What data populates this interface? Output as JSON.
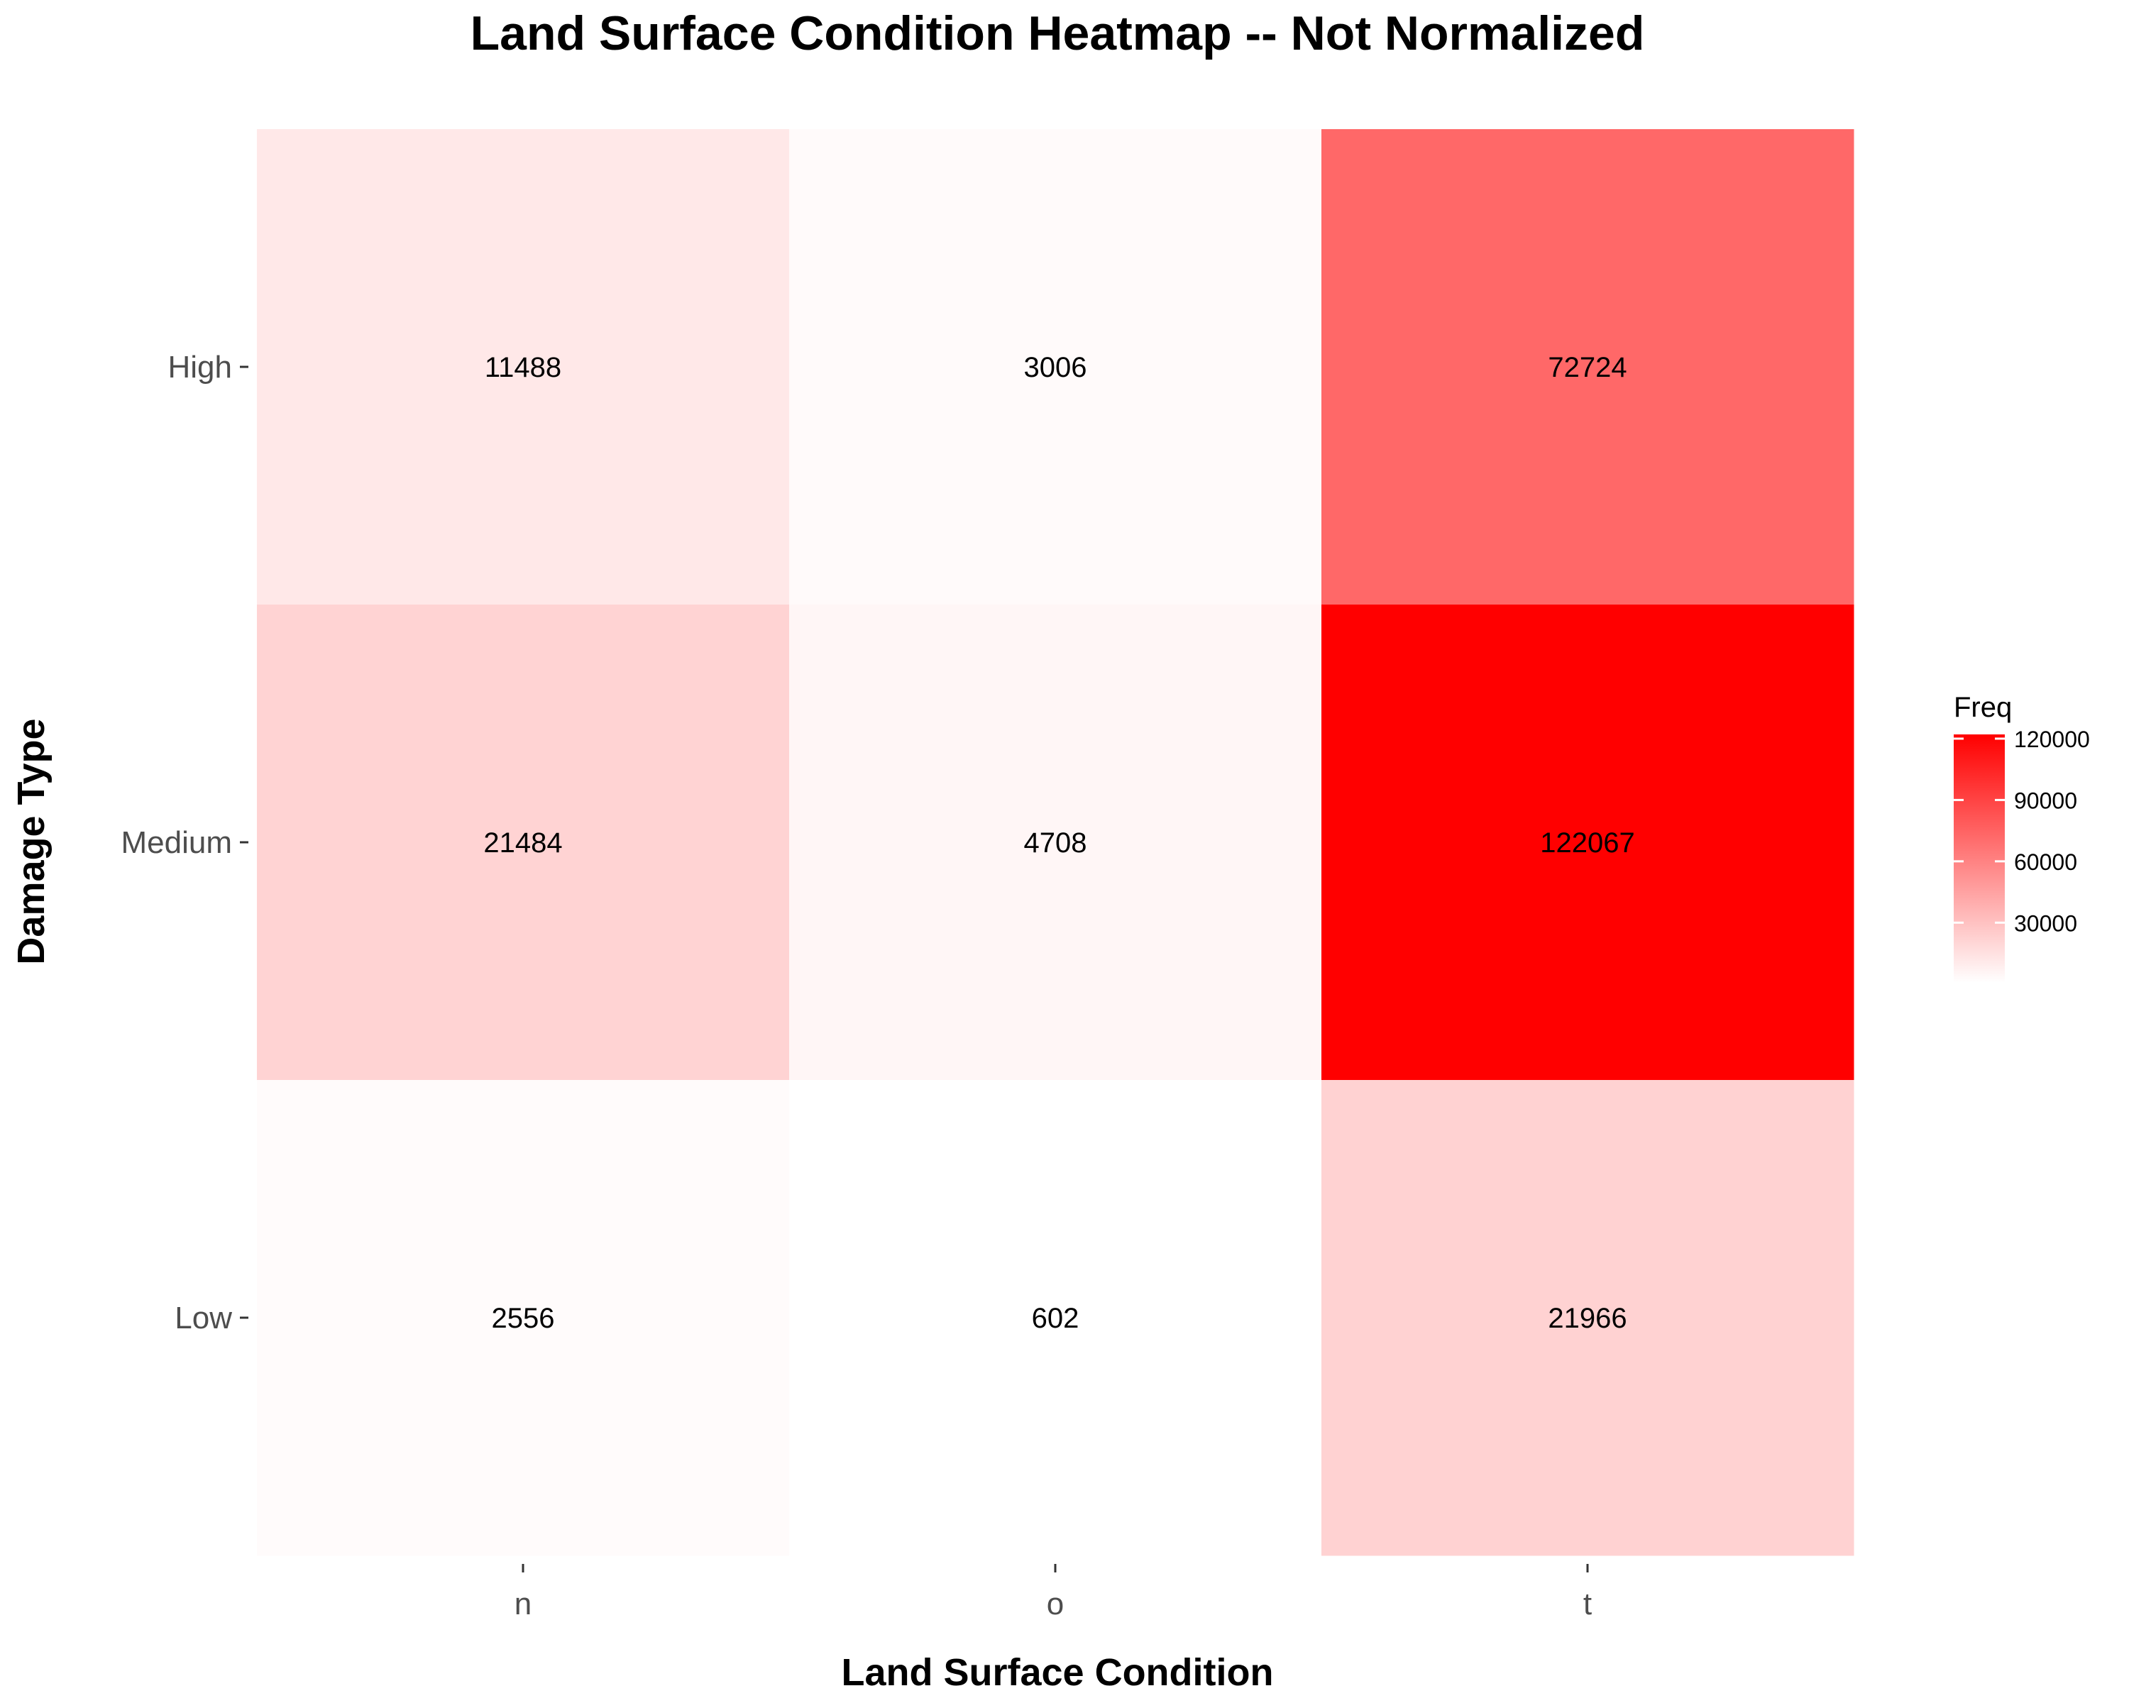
{
  "chart_data": {
    "type": "heatmap",
    "title": "Land Surface Condition Heatmap -- Not Normalized",
    "xlabel": "Land Surface Condition",
    "ylabel": "Damage Type",
    "x_categories": [
      "n",
      "o",
      "t"
    ],
    "y_categories": [
      "High",
      "Medium",
      "Low"
    ],
    "values": [
      [
        11488,
        3006,
        72724
      ],
      [
        21484,
        4708,
        122067
      ],
      [
        2556,
        602,
        21966
      ]
    ],
    "legend": {
      "title": "Freq",
      "ticks": [
        30000,
        60000,
        90000,
        120000
      ],
      "min": 602,
      "max": 122067,
      "color_low": "#ffffff",
      "color_high": "#ff0000",
      "placement": "right"
    },
    "grid": false
  }
}
